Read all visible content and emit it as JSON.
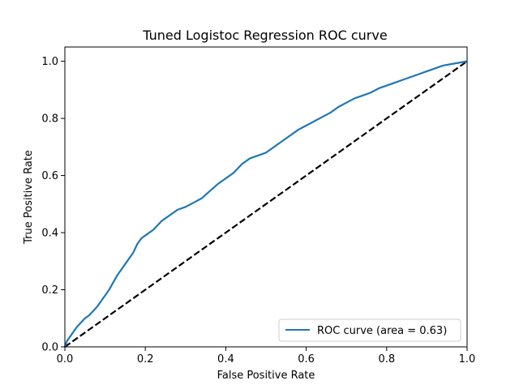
{
  "chart_data": {
    "type": "line",
    "title": "Tuned Logistoc Regression ROC curve",
    "xlabel": "False Positive Rate",
    "ylabel": "True Positive Rate",
    "xlim": [
      0,
      1
    ],
    "ylim": [
      0,
      1.05
    ],
    "xticks": [
      0.0,
      0.2,
      0.4,
      0.6,
      0.8,
      1.0
    ],
    "yticks": [
      0.0,
      0.2,
      0.4,
      0.6,
      0.8,
      1.0
    ],
    "xtick_labels": [
      "0.0",
      "0.2",
      "0.4",
      "0.6",
      "0.8",
      "1.0"
    ],
    "ytick_labels": [
      "0.0",
      "0.2",
      "0.4",
      "0.6",
      "0.8",
      "1.0"
    ],
    "grid": false,
    "legend_position": "lower-right",
    "series": [
      {
        "name": "ROC curve (area = 0.63)",
        "color": "#1f77b4",
        "style": "solid",
        "x": [
          0.0,
          0.005,
          0.01,
          0.02,
          0.03,
          0.04,
          0.05,
          0.06,
          0.07,
          0.08,
          0.09,
          0.1,
          0.11,
          0.12,
          0.13,
          0.14,
          0.15,
          0.16,
          0.17,
          0.18,
          0.19,
          0.2,
          0.22,
          0.24,
          0.26,
          0.28,
          0.3,
          0.32,
          0.34,
          0.36,
          0.38,
          0.4,
          0.42,
          0.44,
          0.46,
          0.48,
          0.5,
          0.52,
          0.54,
          0.56,
          0.58,
          0.6,
          0.62,
          0.64,
          0.66,
          0.68,
          0.7,
          0.72,
          0.74,
          0.76,
          0.78,
          0.8,
          0.82,
          0.84,
          0.86,
          0.88,
          0.9,
          0.92,
          0.94,
          0.96,
          0.98,
          1.0
        ],
        "y": [
          0.0,
          0.02,
          0.03,
          0.05,
          0.07,
          0.085,
          0.1,
          0.11,
          0.125,
          0.14,
          0.16,
          0.18,
          0.2,
          0.225,
          0.25,
          0.27,
          0.29,
          0.31,
          0.33,
          0.36,
          0.38,
          0.39,
          0.41,
          0.44,
          0.46,
          0.48,
          0.49,
          0.505,
          0.52,
          0.545,
          0.57,
          0.59,
          0.61,
          0.64,
          0.66,
          0.67,
          0.68,
          0.7,
          0.72,
          0.74,
          0.76,
          0.775,
          0.79,
          0.805,
          0.82,
          0.84,
          0.855,
          0.87,
          0.88,
          0.89,
          0.905,
          0.915,
          0.925,
          0.935,
          0.945,
          0.955,
          0.965,
          0.975,
          0.985,
          0.99,
          0.995,
          1.0
        ]
      },
      {
        "name": "",
        "color": "#000000",
        "style": "dashed",
        "x": [
          0,
          1
        ],
        "y": [
          0,
          1
        ]
      }
    ]
  }
}
